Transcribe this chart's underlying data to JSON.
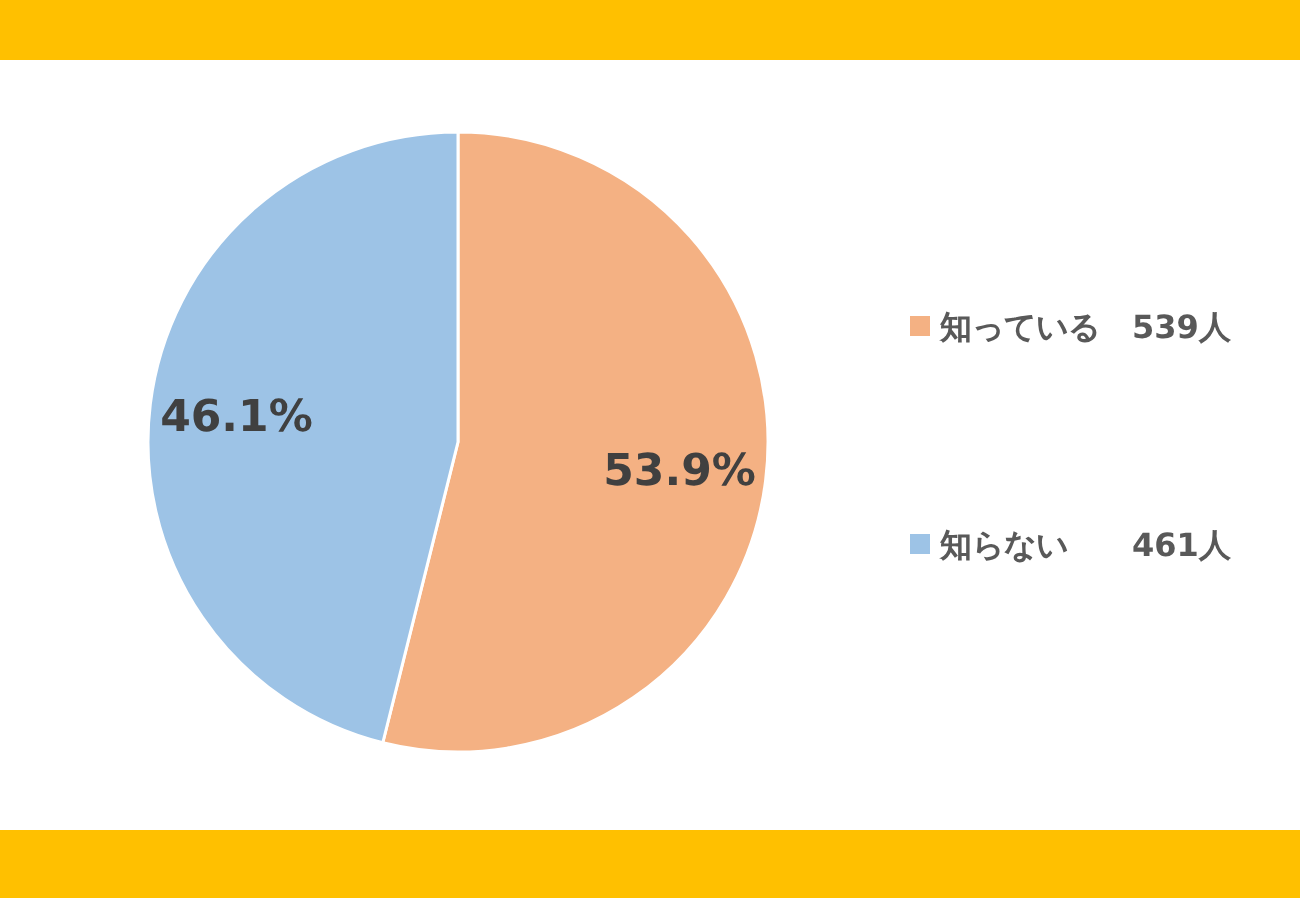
{
  "chart_data": {
    "type": "pie",
    "categories": [
      "知っている　539人",
      "知らない　　461人"
    ],
    "values": [
      53.9,
      46.1
    ],
    "colors": [
      "#f4b183",
      "#9dc3e6"
    ],
    "value_labels": [
      "53.9%",
      "46.1%"
    ],
    "legend": "right"
  }
}
